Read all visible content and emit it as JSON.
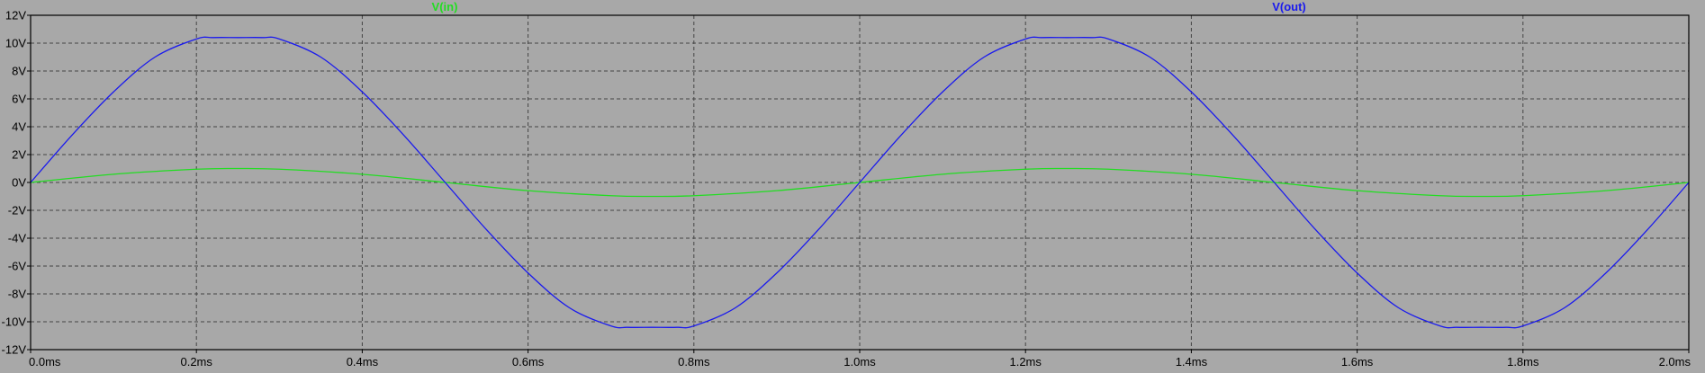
{
  "chart_data": {
    "type": "line",
    "title": "",
    "xlabel": "",
    "ylabel": "",
    "x_unit": "ms",
    "y_unit": "V",
    "xlim": [
      0,
      2.0
    ],
    "ylim": [
      -12,
      12
    ],
    "grid": true,
    "legend_placement": "top",
    "x_ticks": [
      "0.0ms",
      "0.2ms",
      "0.4ms",
      "0.6ms",
      "0.8ms",
      "1.0ms",
      "1.2ms",
      "1.4ms",
      "1.6ms",
      "1.8ms",
      "2.0ms"
    ],
    "y_ticks": [
      "12V",
      "10V",
      "8V",
      "6V",
      "4V",
      "2V",
      "0V",
      "-2V",
      "-4V",
      "-6V",
      "-8V",
      "-10V",
      "-12V"
    ],
    "series": [
      {
        "name": "V(in)",
        "color": "#22dd22",
        "x": [
          0,
          0.1,
          0.2,
          0.25,
          0.3,
          0.4,
          0.5,
          0.6,
          0.7,
          0.75,
          0.8,
          0.9,
          1.0,
          1.1,
          1.2,
          1.25,
          1.3,
          1.4,
          1.5,
          1.6,
          1.7,
          1.75,
          1.8,
          1.9,
          2.0
        ],
        "y": [
          0,
          0.59,
          0.95,
          1.0,
          0.95,
          0.59,
          0,
          -0.59,
          -0.95,
          -1.0,
          -0.95,
          -0.59,
          0,
          0.59,
          0.95,
          1.0,
          0.95,
          0.59,
          0,
          -0.59,
          -0.95,
          -1.0,
          -0.95,
          -0.59,
          0
        ]
      },
      {
        "name": "V(out)",
        "color": "#1a1aee",
        "x": [
          0,
          0.05,
          0.1,
          0.15,
          0.2,
          0.22,
          0.25,
          0.28,
          0.3,
          0.35,
          0.4,
          0.45,
          0.5,
          0.55,
          0.6,
          0.65,
          0.7,
          0.72,
          0.75,
          0.78,
          0.8,
          0.85,
          0.9,
          0.95,
          1.0,
          1.05,
          1.1,
          1.15,
          1.2,
          1.22,
          1.25,
          1.28,
          1.3,
          1.35,
          1.4,
          1.45,
          1.5,
          1.55,
          1.6,
          1.65,
          1.7,
          1.72,
          1.75,
          1.78,
          1.8,
          1.85,
          1.9,
          1.95,
          2.0
        ],
        "y": [
          0,
          3.4,
          6.5,
          9.0,
          10.3,
          10.4,
          10.4,
          10.4,
          10.3,
          9.0,
          6.5,
          3.4,
          0,
          -3.4,
          -6.5,
          -9.0,
          -10.3,
          -10.4,
          -10.4,
          -10.4,
          -10.3,
          -9.0,
          -6.5,
          -3.4,
          0,
          3.4,
          6.5,
          9.0,
          10.3,
          10.4,
          10.4,
          10.4,
          10.3,
          9.0,
          6.5,
          3.4,
          0,
          -3.4,
          -6.5,
          -9.0,
          -10.3,
          -10.4,
          -10.4,
          -10.4,
          -10.3,
          -9.0,
          -6.5,
          -3.4,
          0
        ]
      }
    ]
  }
}
